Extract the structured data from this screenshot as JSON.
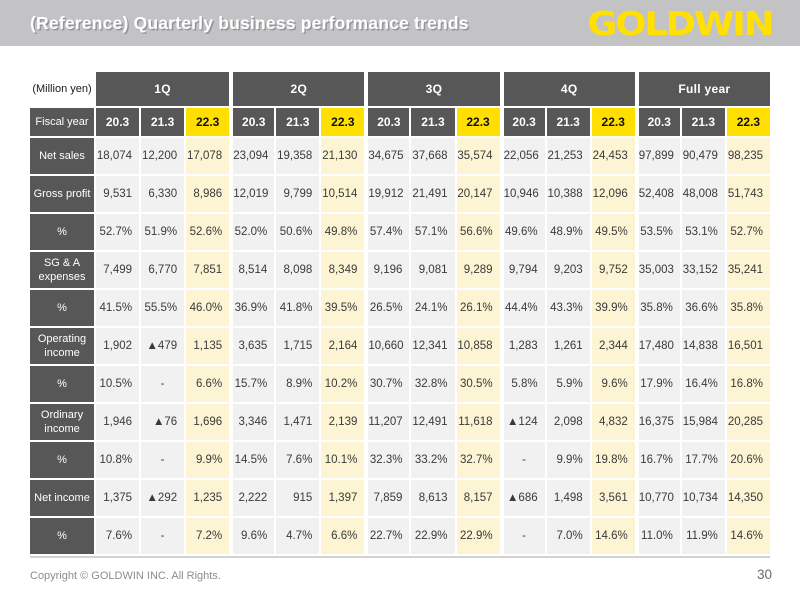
{
  "slide": {
    "title": "(Reference) Quarterly business performance trends",
    "logo_text": "GOLDWIN",
    "copyright": "Copyright © GOLDWIN INC. All Rights.",
    "page_number": "30"
  },
  "table": {
    "unit_label": "(Million yen)",
    "fiscal_year_label": "Fiscal year",
    "quarter_groups": [
      "1Q",
      "2Q",
      "3Q",
      "4Q",
      "Full year"
    ],
    "fiscal_years": [
      "20.3",
      "21.3",
      "22.3"
    ],
    "highlighted_fiscal_year": "22.3",
    "rows": [
      {
        "label": "Net sales",
        "values": [
          "18,074",
          "12,200",
          "17,078",
          "23,094",
          "19,358",
          "21,130",
          "34,675",
          "37,668",
          "35,574",
          "22,056",
          "21,253",
          "24,453",
          "97,899",
          "90,479",
          "98,235"
        ]
      },
      {
        "label": "Gross profit",
        "values": [
          "9,531",
          "6,330",
          "8,986",
          "12,019",
          "9,799",
          "10,514",
          "19,912",
          "21,491",
          "20,147",
          "10,946",
          "10,388",
          "12,096",
          "52,408",
          "48,008",
          "51,743"
        ]
      },
      {
        "label": "%",
        "values": [
          "52.7%",
          "51.9%",
          "52.6%",
          "52.0%",
          "50.6%",
          "49.8%",
          "57.4%",
          "57.1%",
          "56.6%",
          "49.6%",
          "48.9%",
          "49.5%",
          "53.5%",
          "53.1%",
          "52.7%"
        ]
      },
      {
        "label": "SG & A expenses",
        "values": [
          "7,499",
          "6,770",
          "7,851",
          "8,514",
          "8,098",
          "8,349",
          "9,196",
          "9,081",
          "9,289",
          "9,794",
          "9,203",
          "9,752",
          "35,003",
          "33,152",
          "35,241"
        ]
      },
      {
        "label": "%",
        "values": [
          "41.5%",
          "55.5%",
          "46.0%",
          "36.9%",
          "41.8%",
          "39.5%",
          "26.5%",
          "24.1%",
          "26.1%",
          "44.4%",
          "43.3%",
          "39.9%",
          "35.8%",
          "36.6%",
          "35.8%"
        ]
      },
      {
        "label": "Operating income",
        "values": [
          "1,902",
          "▲479",
          "1,135",
          "3,635",
          "1,715",
          "2,164",
          "10,660",
          "12,341",
          "10,858",
          "1,283",
          "1,261",
          "2,344",
          "17,480",
          "14,838",
          "16,501"
        ]
      },
      {
        "label": "%",
        "values": [
          "10.5%",
          "-",
          "6.6%",
          "15.7%",
          "8.9%",
          "10.2%",
          "30.7%",
          "32.8%",
          "30.5%",
          "5.8%",
          "5.9%",
          "9.6%",
          "17.9%",
          "16.4%",
          "16.8%"
        ]
      },
      {
        "label": "Ordinary income",
        "values": [
          "1,946",
          "▲76",
          "1,696",
          "3,346",
          "1,471",
          "2,139",
          "11,207",
          "12,491",
          "11,618",
          "▲124",
          "2,098",
          "4,832",
          "16,375",
          "15,984",
          "20,285"
        ]
      },
      {
        "label": "%",
        "values": [
          "10.8%",
          "-",
          "9.9%",
          "14.5%",
          "7.6%",
          "10.1%",
          "32.3%",
          "33.2%",
          "32.7%",
          "-",
          "9.9%",
          "19.8%",
          "16.7%",
          "17.7%",
          "20.6%"
        ]
      },
      {
        "label": "Net income",
        "values": [
          "1,375",
          "▲292",
          "1,235",
          "2,222",
          "915",
          "1,397",
          "7,859",
          "8,613",
          "8,157",
          "▲686",
          "1,498",
          "3,561",
          "10,770",
          "10,734",
          "14,350"
        ]
      },
      {
        "label": "%",
        "values": [
          "7.6%",
          "-",
          "7.2%",
          "9.6%",
          "4.7%",
          "6.6%",
          "22.7%",
          "22.9%",
          "22.9%",
          "-",
          "7.0%",
          "14.6%",
          "11.0%",
          "11.9%",
          "14.6%"
        ]
      }
    ]
  },
  "colors": {
    "header_band": "#c3c3c6",
    "logo_yellow": "#ffe000",
    "table_dark": "#575757",
    "year_highlight": "#ffdf00",
    "cell_highlight": "#fcf4d3",
    "cell_default": "#f1f1f1"
  }
}
